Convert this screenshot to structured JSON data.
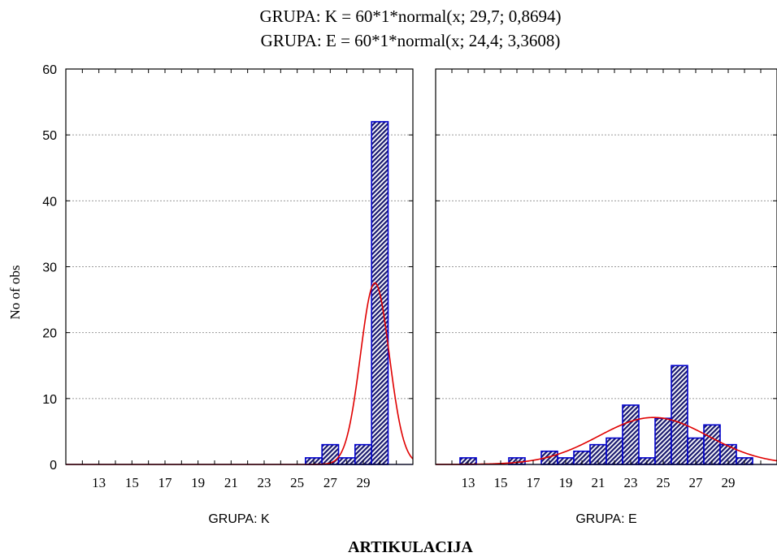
{
  "chart_data": {
    "type": "bar",
    "title_lines": [
      "GRUPA: K  = 60*1*normal(x; 29,7; 0,8694)",
      "GRUPA: E  = 60*1*normal(x; 24,4; 3,3608)"
    ],
    "ylabel": "No of obs",
    "xlabel": "ARTIKULACIJA",
    "ylim": [
      0,
      60
    ],
    "yticks": [
      "0",
      "10",
      "20",
      "30",
      "40",
      "50",
      "60"
    ],
    "xlim": [
      11,
      32
    ],
    "xticks": [
      "13",
      "15",
      "17",
      "19",
      "21",
      "23",
      "25",
      "27",
      "29"
    ],
    "grid": true,
    "colors": {
      "bar_fill": "#1a1a6e",
      "bar_stroke": "#0000cc",
      "curve": "#e00000",
      "grid": "#9a9a9a"
    },
    "panels": [
      {
        "label": "GRUPA: K",
        "categories": [
          12,
          13,
          14,
          15,
          16,
          17,
          18,
          19,
          20,
          21,
          22,
          23,
          24,
          25,
          26,
          27,
          28,
          29,
          30,
          31
        ],
        "values": [
          0,
          0,
          0,
          0,
          0,
          0,
          0,
          0,
          0,
          0,
          0,
          0,
          0,
          0,
          1,
          3,
          1,
          3,
          52,
          0
        ],
        "fit": {
          "n": 60,
          "mean": 29.7,
          "sd": 0.8694
        }
      },
      {
        "label": "GRUPA: E",
        "categories": [
          12,
          13,
          14,
          15,
          16,
          17,
          18,
          19,
          20,
          21,
          22,
          23,
          24,
          25,
          26,
          27,
          28,
          29,
          30,
          31
        ],
        "values": [
          0,
          1,
          0,
          0,
          1,
          0,
          2,
          1,
          2,
          3,
          4,
          9,
          1,
          7,
          15,
          4,
          6,
          3,
          1,
          0
        ],
        "fit": {
          "n": 60,
          "mean": 24.4,
          "sd": 3.3608
        }
      }
    ]
  }
}
